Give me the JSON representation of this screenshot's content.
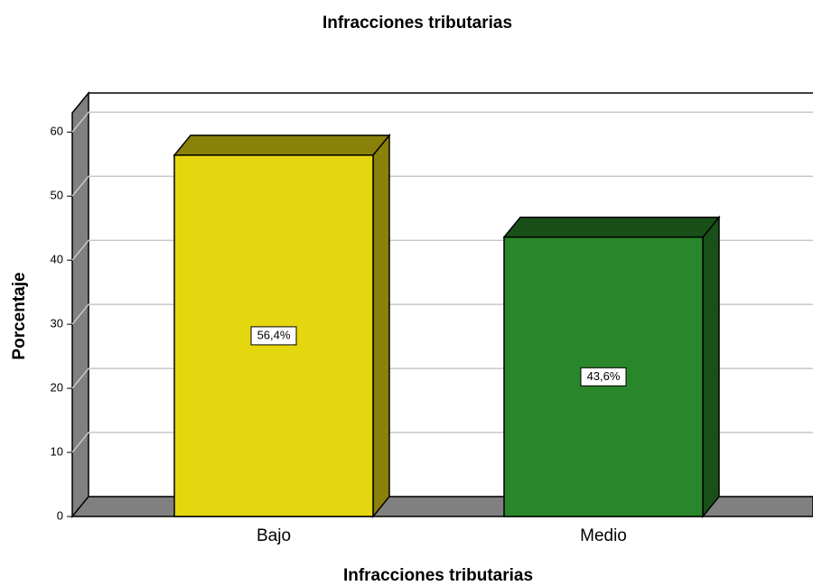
{
  "chart_data": {
    "type": "bar",
    "title": "Infracciones tributarias",
    "xlabel": "Infracciones tributarias",
    "ylabel": "Porcentaje",
    "categories": [
      "Bajo",
      "Medio"
    ],
    "values": [
      56.4,
      43.6
    ],
    "value_labels": [
      "56,4%",
      "43,6%"
    ],
    "colors": [
      "#e5d70f",
      "#2a862a"
    ],
    "ylim": [
      0,
      63
    ],
    "yticks": [
      0,
      10,
      20,
      30,
      40,
      50,
      60
    ],
    "grid": true
  }
}
